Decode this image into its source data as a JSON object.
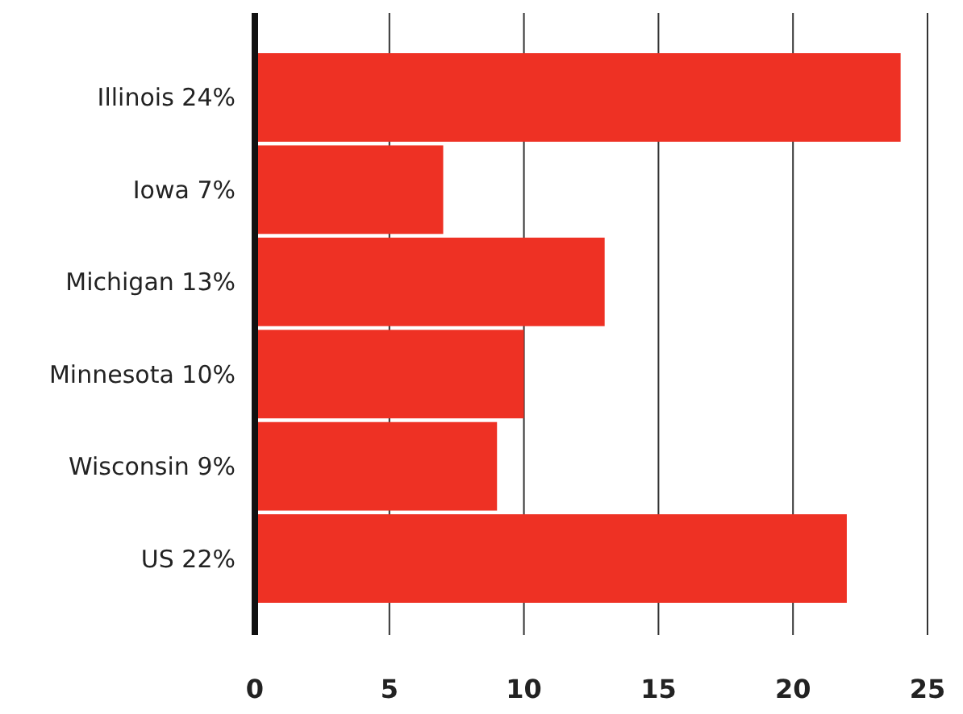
{
  "chart_data": {
    "type": "bar",
    "orientation": "horizontal",
    "categories": [
      "Illinois 24%",
      "Iowa 7%",
      "Michigan 13%",
      "Minnesota 10%",
      "Wisconsin 9%",
      "US 22%"
    ],
    "values": [
      24,
      7,
      13,
      10,
      9,
      22
    ],
    "color": "#ee3124",
    "xlim": [
      0,
      25
    ],
    "xticks": [
      0,
      5,
      10,
      15,
      20,
      25
    ],
    "grid": "x"
  }
}
